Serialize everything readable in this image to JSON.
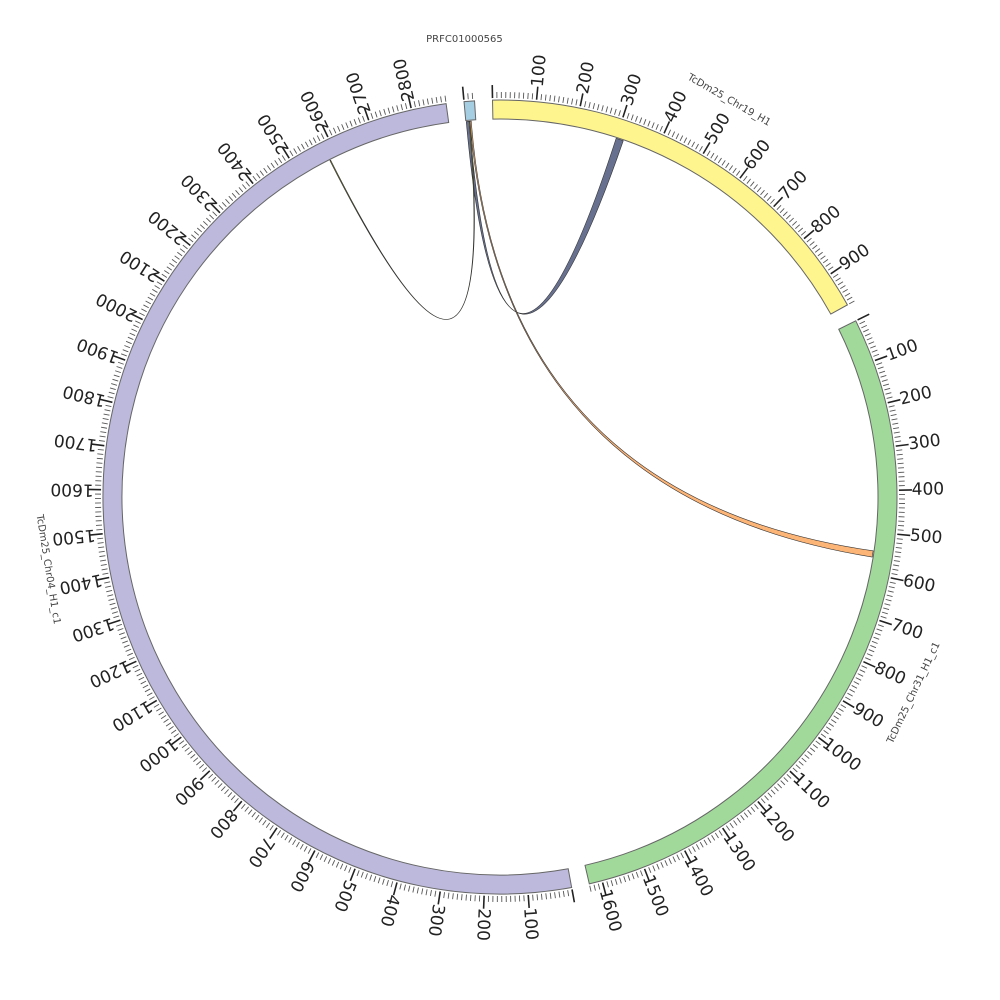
{
  "chart_data": {
    "type": "chord",
    "title": "",
    "gap_degrees": 2.6,
    "label_every": 100,
    "minor_tick_every": 10,
    "chromosomes": [
      {
        "id": "PRFC01000565",
        "name": "PRFC01000565",
        "length": 24,
        "color": "#a6cee3",
        "show_tick_labels": false
      },
      {
        "id": "chr19",
        "name": "TcDm25_Chr19_H1",
        "length": 980,
        "color": "#fff58f",
        "show_tick_labels": true
      },
      {
        "id": "chr31",
        "name": "TcDm25_Chr31_H1_c1",
        "length": 1630,
        "color": "#a1d99b",
        "show_tick_labels": true
      },
      {
        "id": "chr04",
        "name": "TcDm25_Chr04_H1_c1",
        "length": 2880,
        "color": "#bcb9dc",
        "show_tick_labels": true
      }
    ],
    "links": [
      {
        "source": "PRFC01000565",
        "source_start": 1,
        "source_end": 8,
        "target": "chr19",
        "target_start": 300,
        "target_end": 318,
        "color": "#5a6585"
      },
      {
        "source": "PRFC01000565",
        "source_start": 8,
        "source_end": 10,
        "target": "chr04",
        "target_start": 2580,
        "target_end": 2582,
        "color": "#d4d400"
      },
      {
        "source": "PRFC01000565",
        "source_start": 10,
        "source_end": 13,
        "target": "chr31",
        "target_start": 545,
        "target_end": 560,
        "color": "#fdae6b"
      }
    ]
  }
}
